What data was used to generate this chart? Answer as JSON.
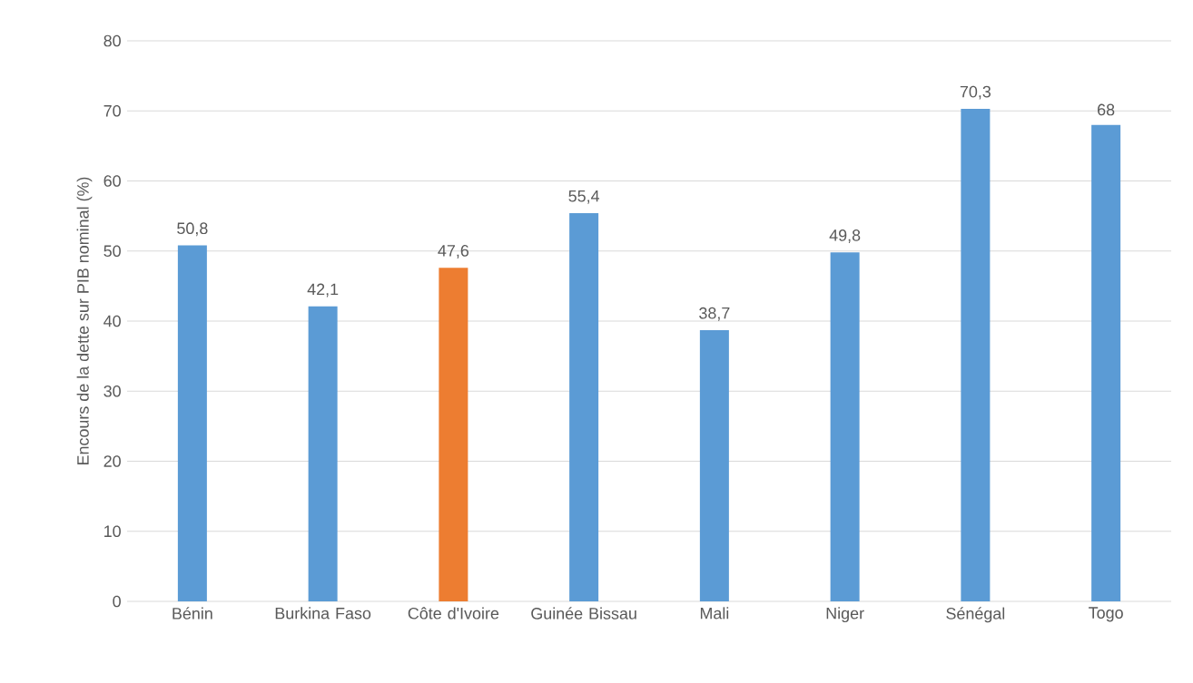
{
  "chart_data": {
    "type": "bar",
    "ylabel": "Encours de la dette sur PIB nominal (%)",
    "categories": [
      "Bénin",
      "Burkina Faso",
      "Côte d'Ivoire",
      "Guinée Bissau",
      "Mali",
      "Niger",
      "Sénégal",
      "Togo"
    ],
    "values": [
      50.8,
      42.1,
      47.6,
      55.4,
      38.7,
      49.8,
      70.3,
      68
    ],
    "value_labels": [
      "50,8",
      "42,1",
      "47,6",
      "55,4",
      "38,7",
      "49,8",
      "70,3",
      "68"
    ],
    "colors": [
      "#5b9bd5",
      "#5b9bd5",
      "#ed7d31",
      "#5b9bd5",
      "#5b9bd5",
      "#5b9bd5",
      "#5b9bd5",
      "#5b9bd5"
    ],
    "ylim": [
      0,
      80
    ],
    "yticks": [
      0,
      10,
      20,
      30,
      40,
      50,
      60,
      70,
      80
    ],
    "grid": "y"
  }
}
